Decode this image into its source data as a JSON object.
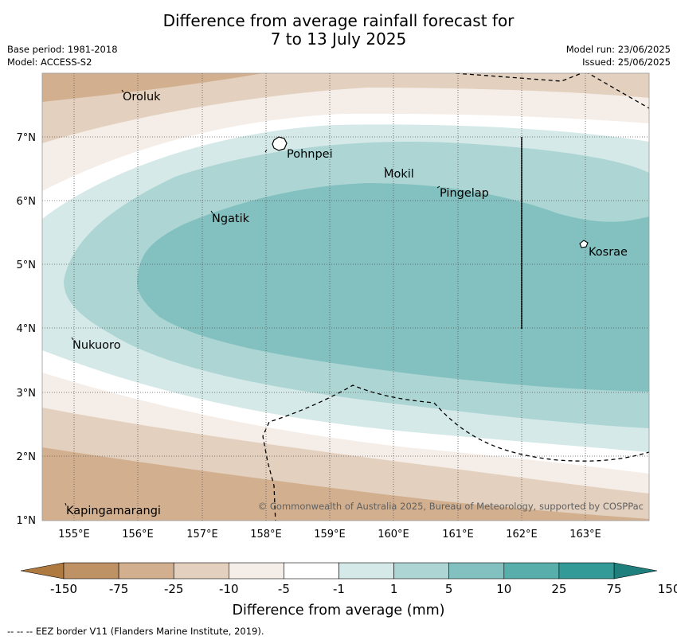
{
  "title_line1": "Difference from average rainfall forecast for",
  "title_line2": "7 to 13 July 2025",
  "base_period": "Base period: 1981-2018",
  "model": "Model: ACCESS-S2",
  "model_run": "Model run: 23/06/2025",
  "issued": "Issued: 25/06/2025",
  "copyright": "© Commonwealth of Australia 2025, Bureau of Meteorology, supported by COSPPac",
  "footer": "--  --  -- EEZ border V11 (Flanders Marine Institute, 2019).",
  "map": {
    "lon_ticks": [
      "155°E",
      "156°E",
      "157°E",
      "158°E",
      "159°E",
      "160°E",
      "161°E",
      "162°E",
      "163°E"
    ],
    "lat_ticks": [
      "7°N",
      "6°N",
      "5°N",
      "4°N",
      "3°N",
      "2°N",
      "1°N"
    ],
    "places": [
      {
        "name": "Oroluk"
      },
      {
        "name": "Pohnpei"
      },
      {
        "name": "Mokil"
      },
      {
        "name": "Pingelap"
      },
      {
        "name": "Ngatik"
      },
      {
        "name": "Kosrae"
      },
      {
        "name": "Nukuoro"
      },
      {
        "name": "Kapingamarangi"
      }
    ]
  },
  "colorbar": {
    "title": "Difference from average (mm)",
    "labels": [
      "-150",
      "-75",
      "-25",
      "-10",
      "-5",
      "-1",
      "1",
      "5",
      "10",
      "25",
      "75",
      "150"
    ],
    "colors": [
      "#af7a40",
      "#bf9265",
      "#d2b08f",
      "#e3d0be",
      "#f5ede7",
      "#ffffff",
      "#d4e9e8",
      "#acd5d4",
      "#82c1bf",
      "#57aeab",
      "#349a98",
      "#1f7f7d"
    ]
  }
}
